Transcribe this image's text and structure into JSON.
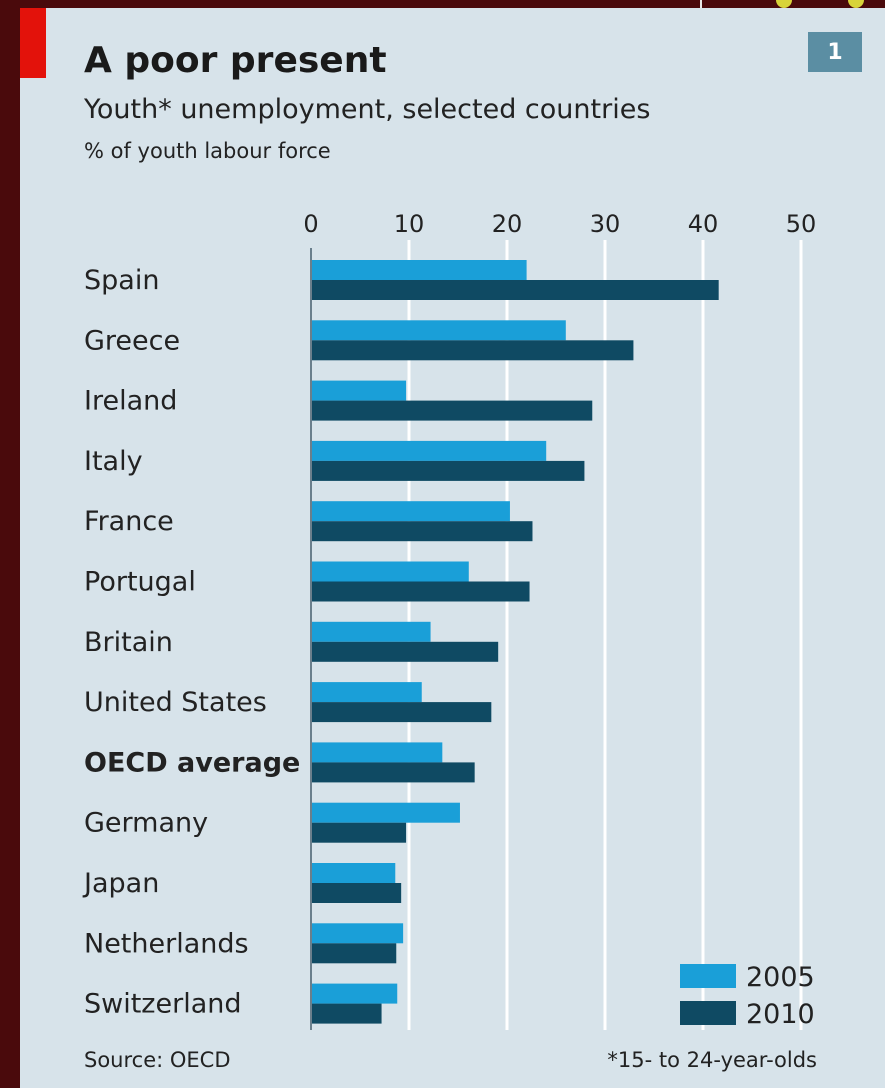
{
  "colors": {
    "page_background": "#4a0a0c",
    "panel_background": "#d7e3ea",
    "accent_red": "#e3120b",
    "badge": "#5b8ea3",
    "series_2005": "#1a9fd8",
    "series_2010": "#0f4a63"
  },
  "badge_number": "1",
  "chart_data": {
    "type": "bar",
    "orientation": "horizontal",
    "title": "A poor present",
    "subtitle": "Youth* unemployment, selected countries",
    "unit_label": "% of youth labour force",
    "categories": [
      "Spain",
      "Greece",
      "Ireland",
      "Italy",
      "France",
      "Portugal",
      "Britain",
      "United States",
      "OECD average",
      "Germany",
      "Japan",
      "Netherlands",
      "Switzerland"
    ],
    "emphasized_category": "OECD average",
    "series": [
      {
        "name": "2005",
        "color": "#1a9fd8",
        "values": [
          22,
          26,
          9.7,
          24,
          20.3,
          16.1,
          12.2,
          11.3,
          13.4,
          15.2,
          8.6,
          9.4,
          8.8
        ]
      },
      {
        "name": "2010",
        "color": "#0f4a63",
        "values": [
          41.6,
          32.9,
          28.7,
          27.9,
          22.6,
          22.3,
          19.1,
          18.4,
          16.7,
          9.7,
          9.2,
          8.7,
          7.2
        ]
      }
    ],
    "x_ticks": [
      0,
      10,
      20,
      30,
      40,
      50
    ],
    "xlim": [
      0,
      50
    ],
    "x_axis_position": "top",
    "grid": true,
    "legend_position": "bottom-right",
    "source": "Source: OECD",
    "footnote": "*15- to 24-year-olds"
  }
}
